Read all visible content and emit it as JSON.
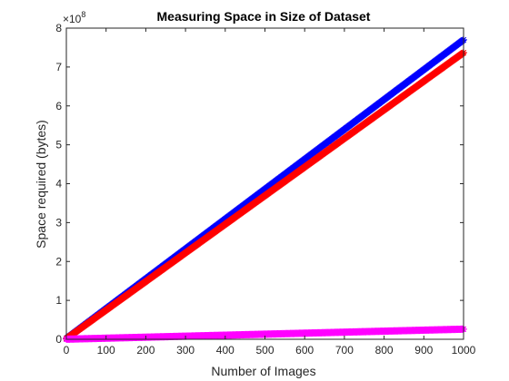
{
  "chart_data": {
    "type": "scatter",
    "title": "Measuring Space in Size of Dataset",
    "xlabel": "Number of Images",
    "ylabel": "Space required (bytes)",
    "xlim": [
      0,
      1000
    ],
    "ylim": [
      0,
      800000000
    ],
    "y_exponent_label": "×10",
    "y_exponent_power": "8",
    "x_ticks": [
      0,
      100,
      200,
      300,
      400,
      500,
      600,
      700,
      800,
      900,
      1000
    ],
    "y_ticks": [
      0,
      1,
      2,
      3,
      4,
      5,
      6,
      7,
      8
    ],
    "grid": false,
    "marker": "*",
    "series": [
      {
        "color": "#0000ff",
        "x": [
          0,
          1000
        ],
        "y": [
          2000000,
          770000000
        ]
      },
      {
        "color": "#ff0000",
        "x": [
          0,
          1000
        ],
        "y": [
          1500000,
          737000000
        ]
      },
      {
        "color": "#ff00ff",
        "x": [
          0,
          1000
        ],
        "y": [
          200000,
          26000000
        ]
      }
    ]
  }
}
